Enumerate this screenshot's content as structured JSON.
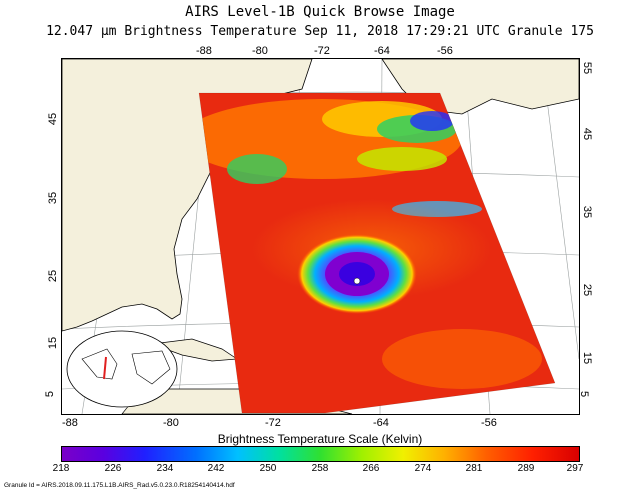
{
  "title": "AIRS Level-1B Quick Browse Image",
  "subtitle": "12.047 µm Brightness Temperature   Sep 11, 2018 17:29:21 UTC   Granule 175",
  "top_ticks": [
    "-88",
    "-80",
    "-72",
    "-64",
    "-56"
  ],
  "bottom_ticks": [
    "-88",
    "-80",
    "-72",
    "-64",
    "-56"
  ],
  "left_ticks": [
    "5",
    "15",
    "25",
    "35",
    "45"
  ],
  "right_ticks": [
    "5",
    "15",
    "25",
    "35",
    "45",
    "55"
  ],
  "scale": {
    "title": "Brightness Temperature Scale (Kelvin)",
    "ticks": [
      "218",
      "226",
      "234",
      "242",
      "250",
      "258",
      "266",
      "274",
      "281",
      "289",
      "297"
    ],
    "min": 218,
    "max": 297
  },
  "granule_id": "Granule Id = AIRS.2018.09.11.175.L1B.AIRS_Rad.v5.0.23.0.R18254140414.hdf"
}
